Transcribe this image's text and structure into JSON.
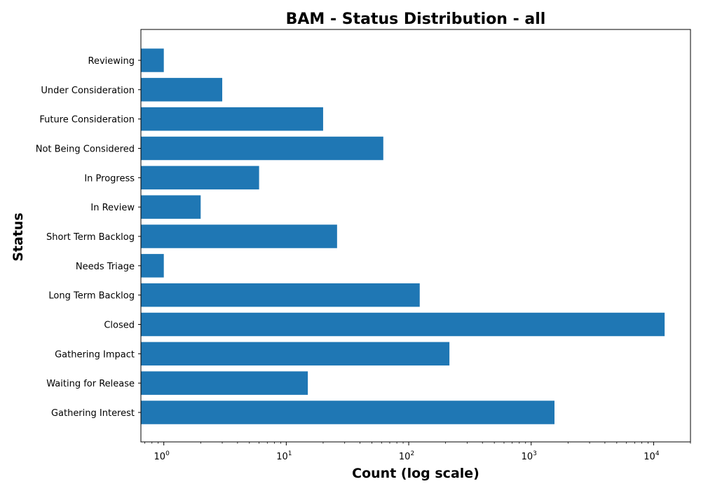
{
  "chart_data": {
    "type": "bar",
    "orientation": "horizontal",
    "title": "BAM - Status Distribution - all",
    "xlabel": "Count (log scale)",
    "ylabel": "Status",
    "xscale": "log",
    "xlim": [
      0.65,
      20000
    ],
    "x_ticks": [
      {
        "value": 1,
        "base": "10",
        "exp": "0"
      },
      {
        "value": 10,
        "base": "10",
        "exp": "1"
      },
      {
        "value": 100,
        "base": "10",
        "exp": "2"
      },
      {
        "value": 1000,
        "base": "10",
        "exp": "3"
      },
      {
        "value": 10000,
        "base": "10",
        "exp": "4"
      }
    ],
    "categories": [
      "Reviewing",
      "Under Consideration",
      "Future Consideration",
      "Not Being Considered",
      "In Progress",
      "In Review",
      "Short Term Backlog",
      "Needs Triage",
      "Long Term Backlog",
      "Closed",
      "Gathering Impact",
      "Waiting for Release",
      "Gathering Interest"
    ],
    "values": [
      1,
      3,
      20,
      62,
      6,
      2,
      26,
      1,
      123,
      12300,
      215,
      15,
      1550
    ],
    "bar_color": "#1f77b4",
    "grid": false,
    "legend": false
  }
}
